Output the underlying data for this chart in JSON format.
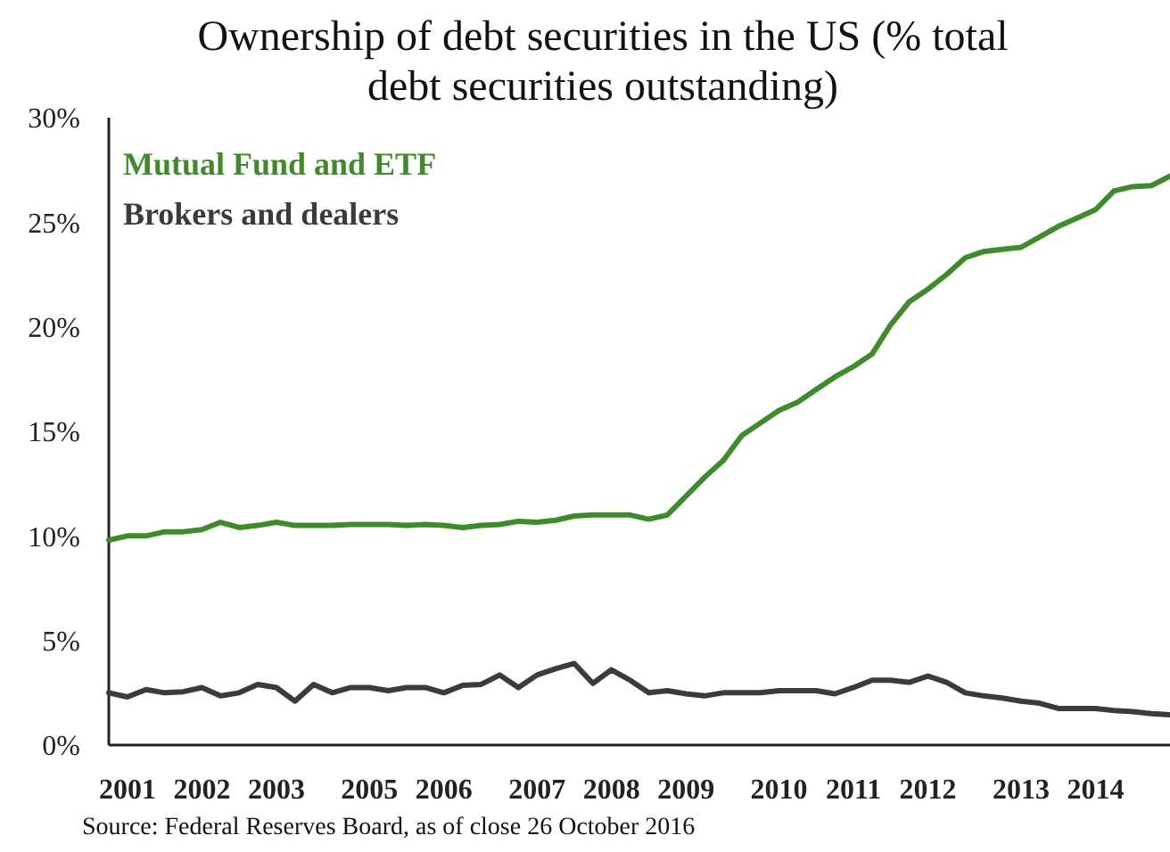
{
  "chart_data": {
    "type": "line",
    "title": "Ownership of debt securities in the US (% total debt securities outstanding)",
    "categories": [
      null,
      "2001",
      null,
      null,
      null,
      "2002",
      null,
      null,
      null,
      "2003",
      null,
      null,
      null,
      null,
      "2005",
      null,
      null,
      null,
      "2006",
      null,
      null,
      null,
      null,
      "2007",
      null,
      null,
      null,
      "2008",
      null,
      null,
      null,
      "2009",
      null,
      null,
      null,
      null,
      "2010",
      null,
      null,
      null,
      "2011",
      null,
      null,
      null,
      "2012",
      null,
      null,
      null,
      null,
      "2013",
      null,
      null,
      null,
      "2014",
      null,
      null,
      null,
      null
    ],
    "series": [
      {
        "name": "Mutual Fund and ETF",
        "color": "#3f8a2a",
        "values": [
          9.8,
          10.0,
          10.0,
          10.2,
          10.2,
          10.3,
          10.65,
          10.4,
          10.5,
          10.65,
          10.5,
          10.5,
          10.5,
          10.55,
          10.55,
          10.55,
          10.5,
          10.55,
          10.5,
          10.4,
          10.5,
          10.55,
          10.7,
          10.65,
          10.75,
          10.95,
          11.0,
          11.0,
          11.0,
          10.8,
          11.0,
          11.9,
          12.8,
          13.6,
          14.8,
          15.4,
          16.0,
          16.4,
          17.0,
          17.6,
          18.1,
          18.7,
          20.1,
          21.2,
          21.8,
          22.5,
          23.3,
          23.6,
          23.7,
          23.8,
          24.3,
          24.8,
          25.2,
          25.6,
          26.5,
          26.7,
          26.75,
          27.2
        ]
      },
      {
        "name": "Brokers and dealers",
        "color": "#3d3a3a",
        "values": [
          2.5,
          2.3,
          2.65,
          2.5,
          2.55,
          2.75,
          2.35,
          2.5,
          2.9,
          2.75,
          2.1,
          2.9,
          2.5,
          2.75,
          2.75,
          2.6,
          2.75,
          2.75,
          2.5,
          2.85,
          2.9,
          3.35,
          2.75,
          3.35,
          3.65,
          3.9,
          2.95,
          3.6,
          3.1,
          2.5,
          2.6,
          2.45,
          2.35,
          2.5,
          2.5,
          2.5,
          2.6,
          2.6,
          2.6,
          2.45,
          2.75,
          3.1,
          3.1,
          3.0,
          3.3,
          3.0,
          2.5,
          2.35,
          2.25,
          2.1,
          2.0,
          1.75,
          1.75,
          1.75,
          1.65,
          1.6,
          1.5,
          1.45
        ]
      }
    ],
    "ylim": [
      0,
      30
    ],
    "yticks": [
      {
        "value": 0,
        "label": "0%"
      },
      {
        "value": 5,
        "label": "5%"
      },
      {
        "value": 10,
        "label": "10%"
      },
      {
        "value": 15,
        "label": "15%"
      },
      {
        "value": 20,
        "label": "20%"
      },
      {
        "value": 25,
        "label": "25%"
      },
      {
        "value": 30,
        "label": "30%"
      }
    ],
    "legend": "top left",
    "grid": false,
    "marker": "none",
    "line_style": "solid",
    "annotations": [
      "Source: Federal Reserves Board, as of close 26 October 2016"
    ]
  }
}
